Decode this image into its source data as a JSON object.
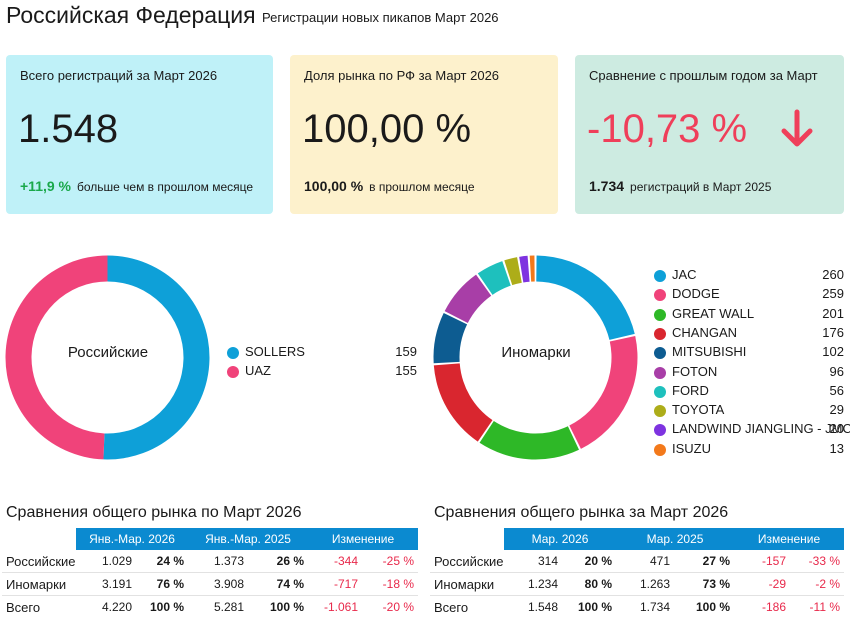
{
  "header": {
    "title": "Российская Федерация",
    "subtitle": "Регистрации новых пикапов Март 2026"
  },
  "cards": [
    {
      "label": "Всего регистраций за Март 2026",
      "big": "1.548",
      "delta": "+11,9 %",
      "delta_text": "больше чем в прошлом месяце",
      "bg": "#bff1f8",
      "delta_color": "#1aa84b"
    },
    {
      "label": "Доля рынка по РФ за Март 2026",
      "big": "100,00 %",
      "delta": "100,00 %",
      "delta_text": "в прошлом месяце",
      "bg": "#fdf1cc",
      "delta_color": "#1a1a1a"
    },
    {
      "label": "Сравнение с прошлым годом за Март",
      "big": "-10,73 %",
      "delta": "1.734",
      "delta_text": "регистраций в Март 2025",
      "bg": "#cdebe1",
      "delta_color": "#1a1a1a",
      "big_color": "#ef3f5a",
      "icon": "arrow-down-icon"
    }
  ],
  "chart_data": [
    {
      "type": "pie",
      "variant": "donut",
      "title": "Российские",
      "categories": [
        "SOLLERS",
        "UAZ"
      ],
      "values": [
        159,
        155
      ],
      "colors": [
        "#0ea0d8",
        "#f0437a"
      ]
    },
    {
      "type": "pie",
      "variant": "donut",
      "title": "Иномарки",
      "categories": [
        "JAC",
        "DODGE",
        "GREAT WALL",
        "CHANGAN",
        "MITSUBISHI",
        "FOTON",
        "FORD",
        "TOYOTA",
        "LANDWIND JIANGLING - JMC",
        "ISUZU"
      ],
      "values": [
        260,
        259,
        201,
        176,
        102,
        96,
        56,
        29,
        20,
        13
      ],
      "value_labels": [
        "260",
        "259",
        "201",
        "176",
        "102",
        "96",
        "56",
        "29",
        "20",
        "13"
      ],
      "colors": [
        "#0ea0d8",
        "#f0437a",
        "#2eb827",
        "#d9262f",
        "#0d5c91",
        "#a83ea7",
        "#1ec0bd",
        "#adad19",
        "#7e33e0",
        "#f3791b"
      ]
    }
  ],
  "table_left": {
    "title": "Сравнения общего рынка по Март 2026",
    "headers": [
      "Янв.-Мар. 2026",
      "Янв.-Мар. 2025",
      "Изменение"
    ],
    "rows": [
      {
        "label": "Российские",
        "v1": "1.029",
        "p1": "24 %",
        "v2": "1.373",
        "p2": "26 %",
        "d": "-344",
        "dp": "-25 %"
      },
      {
        "label": "Иномарки",
        "v1": "3.191",
        "p1": "76 %",
        "v2": "3.908",
        "p2": "74 %",
        "d": "-717",
        "dp": "-18 %"
      },
      {
        "label": "Всего",
        "v1": "4.220",
        "p1": "100 %",
        "v2": "5.281",
        "p2": "100 %",
        "d": "-1.061",
        "dp": "-20 %"
      }
    ]
  },
  "table_right": {
    "title": "Сравнения общего рынка за Март 2026",
    "headers": [
      "Мар. 2026",
      "Мар. 2025",
      "Изменение"
    ],
    "rows": [
      {
        "label": "Российские",
        "v1": "314",
        "p1": "20 %",
        "v2": "471",
        "p2": "27 %",
        "d": "-157",
        "dp": "-33 %"
      },
      {
        "label": "Иномарки",
        "v1": "1.234",
        "p1": "80 %",
        "v2": "1.263",
        "p2": "73 %",
        "d": "-29",
        "dp": "-2 %"
      },
      {
        "label": "Всего",
        "v1": "1.548",
        "p1": "100 %",
        "v2": "1.734",
        "p2": "100 %",
        "d": "-186",
        "dp": "-11 %"
      }
    ]
  }
}
